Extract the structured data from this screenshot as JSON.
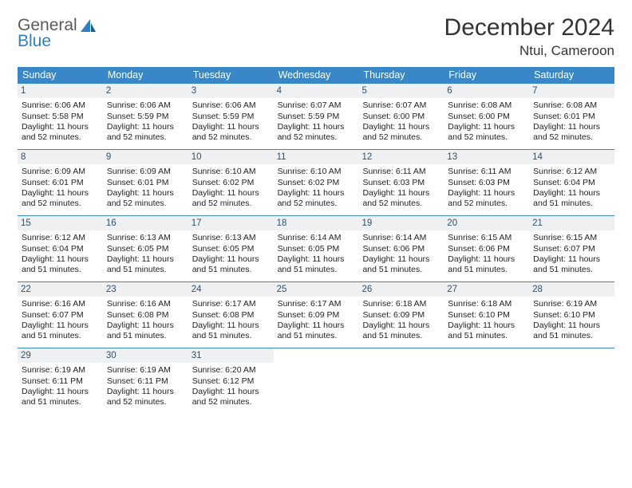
{
  "logo": {
    "line1": "General",
    "line2": "Blue"
  },
  "title": "December 2024",
  "location": "Ntui, Cameroon",
  "colors": {
    "header_bg": "#3a87c8",
    "header_text": "#ffffff",
    "daynum_bg": "#eef0f2",
    "daynum_text": "#30506a",
    "body_text": "#222222",
    "rule": "#3a87c8",
    "logo_gray": "#5a5a5a",
    "logo_blue": "#2f80c3"
  },
  "day_headers": [
    "Sunday",
    "Monday",
    "Tuesday",
    "Wednesday",
    "Thursday",
    "Friday",
    "Saturday"
  ],
  "weeks": [
    [
      {
        "n": "1",
        "sr": "Sunrise: 6:06 AM",
        "ss": "Sunset: 5:58 PM",
        "d1": "Daylight: 11 hours",
        "d2": "and 52 minutes."
      },
      {
        "n": "2",
        "sr": "Sunrise: 6:06 AM",
        "ss": "Sunset: 5:59 PM",
        "d1": "Daylight: 11 hours",
        "d2": "and 52 minutes."
      },
      {
        "n": "3",
        "sr": "Sunrise: 6:06 AM",
        "ss": "Sunset: 5:59 PM",
        "d1": "Daylight: 11 hours",
        "d2": "and 52 minutes."
      },
      {
        "n": "4",
        "sr": "Sunrise: 6:07 AM",
        "ss": "Sunset: 5:59 PM",
        "d1": "Daylight: 11 hours",
        "d2": "and 52 minutes."
      },
      {
        "n": "5",
        "sr": "Sunrise: 6:07 AM",
        "ss": "Sunset: 6:00 PM",
        "d1": "Daylight: 11 hours",
        "d2": "and 52 minutes."
      },
      {
        "n": "6",
        "sr": "Sunrise: 6:08 AM",
        "ss": "Sunset: 6:00 PM",
        "d1": "Daylight: 11 hours",
        "d2": "and 52 minutes."
      },
      {
        "n": "7",
        "sr": "Sunrise: 6:08 AM",
        "ss": "Sunset: 6:01 PM",
        "d1": "Daylight: 11 hours",
        "d2": "and 52 minutes."
      }
    ],
    [
      {
        "n": "8",
        "sr": "Sunrise: 6:09 AM",
        "ss": "Sunset: 6:01 PM",
        "d1": "Daylight: 11 hours",
        "d2": "and 52 minutes."
      },
      {
        "n": "9",
        "sr": "Sunrise: 6:09 AM",
        "ss": "Sunset: 6:01 PM",
        "d1": "Daylight: 11 hours",
        "d2": "and 52 minutes."
      },
      {
        "n": "10",
        "sr": "Sunrise: 6:10 AM",
        "ss": "Sunset: 6:02 PM",
        "d1": "Daylight: 11 hours",
        "d2": "and 52 minutes."
      },
      {
        "n": "11",
        "sr": "Sunrise: 6:10 AM",
        "ss": "Sunset: 6:02 PM",
        "d1": "Daylight: 11 hours",
        "d2": "and 52 minutes."
      },
      {
        "n": "12",
        "sr": "Sunrise: 6:11 AM",
        "ss": "Sunset: 6:03 PM",
        "d1": "Daylight: 11 hours",
        "d2": "and 52 minutes."
      },
      {
        "n": "13",
        "sr": "Sunrise: 6:11 AM",
        "ss": "Sunset: 6:03 PM",
        "d1": "Daylight: 11 hours",
        "d2": "and 52 minutes."
      },
      {
        "n": "14",
        "sr": "Sunrise: 6:12 AM",
        "ss": "Sunset: 6:04 PM",
        "d1": "Daylight: 11 hours",
        "d2": "and 51 minutes."
      }
    ],
    [
      {
        "n": "15",
        "sr": "Sunrise: 6:12 AM",
        "ss": "Sunset: 6:04 PM",
        "d1": "Daylight: 11 hours",
        "d2": "and 51 minutes."
      },
      {
        "n": "16",
        "sr": "Sunrise: 6:13 AM",
        "ss": "Sunset: 6:05 PM",
        "d1": "Daylight: 11 hours",
        "d2": "and 51 minutes."
      },
      {
        "n": "17",
        "sr": "Sunrise: 6:13 AM",
        "ss": "Sunset: 6:05 PM",
        "d1": "Daylight: 11 hours",
        "d2": "and 51 minutes."
      },
      {
        "n": "18",
        "sr": "Sunrise: 6:14 AM",
        "ss": "Sunset: 6:05 PM",
        "d1": "Daylight: 11 hours",
        "d2": "and 51 minutes."
      },
      {
        "n": "19",
        "sr": "Sunrise: 6:14 AM",
        "ss": "Sunset: 6:06 PM",
        "d1": "Daylight: 11 hours",
        "d2": "and 51 minutes."
      },
      {
        "n": "20",
        "sr": "Sunrise: 6:15 AM",
        "ss": "Sunset: 6:06 PM",
        "d1": "Daylight: 11 hours",
        "d2": "and 51 minutes."
      },
      {
        "n": "21",
        "sr": "Sunrise: 6:15 AM",
        "ss": "Sunset: 6:07 PM",
        "d1": "Daylight: 11 hours",
        "d2": "and 51 minutes."
      }
    ],
    [
      {
        "n": "22",
        "sr": "Sunrise: 6:16 AM",
        "ss": "Sunset: 6:07 PM",
        "d1": "Daylight: 11 hours",
        "d2": "and 51 minutes."
      },
      {
        "n": "23",
        "sr": "Sunrise: 6:16 AM",
        "ss": "Sunset: 6:08 PM",
        "d1": "Daylight: 11 hours",
        "d2": "and 51 minutes."
      },
      {
        "n": "24",
        "sr": "Sunrise: 6:17 AM",
        "ss": "Sunset: 6:08 PM",
        "d1": "Daylight: 11 hours",
        "d2": "and 51 minutes."
      },
      {
        "n": "25",
        "sr": "Sunrise: 6:17 AM",
        "ss": "Sunset: 6:09 PM",
        "d1": "Daylight: 11 hours",
        "d2": "and 51 minutes."
      },
      {
        "n": "26",
        "sr": "Sunrise: 6:18 AM",
        "ss": "Sunset: 6:09 PM",
        "d1": "Daylight: 11 hours",
        "d2": "and 51 minutes."
      },
      {
        "n": "27",
        "sr": "Sunrise: 6:18 AM",
        "ss": "Sunset: 6:10 PM",
        "d1": "Daylight: 11 hours",
        "d2": "and 51 minutes."
      },
      {
        "n": "28",
        "sr": "Sunrise: 6:19 AM",
        "ss": "Sunset: 6:10 PM",
        "d1": "Daylight: 11 hours",
        "d2": "and 51 minutes."
      }
    ],
    [
      {
        "n": "29",
        "sr": "Sunrise: 6:19 AM",
        "ss": "Sunset: 6:11 PM",
        "d1": "Daylight: 11 hours",
        "d2": "and 51 minutes."
      },
      {
        "n": "30",
        "sr": "Sunrise: 6:19 AM",
        "ss": "Sunset: 6:11 PM",
        "d1": "Daylight: 11 hours",
        "d2": "and 52 minutes."
      },
      {
        "n": "31",
        "sr": "Sunrise: 6:20 AM",
        "ss": "Sunset: 6:12 PM",
        "d1": "Daylight: 11 hours",
        "d2": "and 52 minutes."
      },
      null,
      null,
      null,
      null
    ]
  ]
}
